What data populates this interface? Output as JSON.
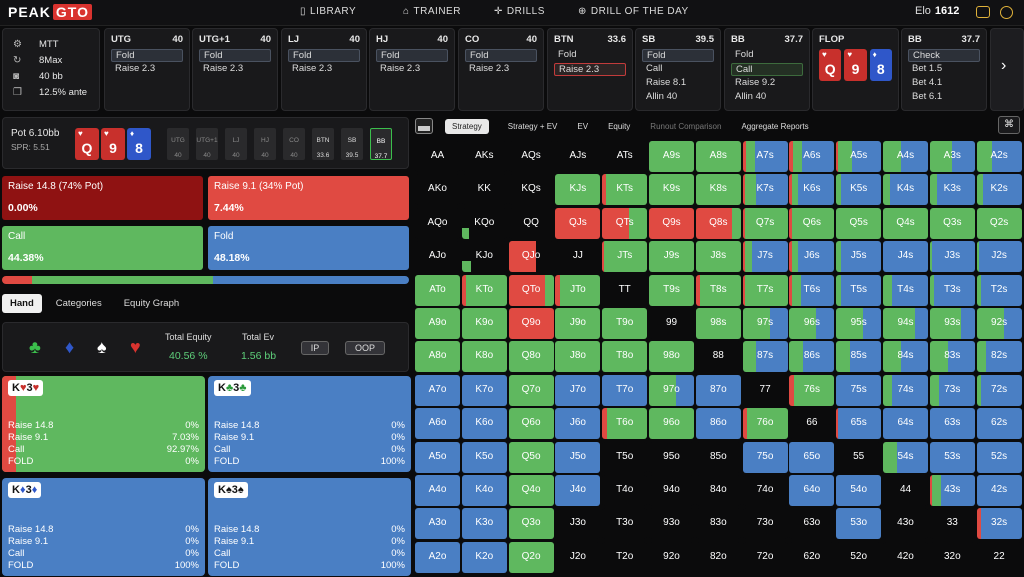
{
  "nav": {
    "logo_a": "PEAK",
    "logo_b": "GTO",
    "items": [
      {
        "label": "LIBRARY",
        "icon": "book-icon"
      },
      {
        "label": "TRAINER",
        "icon": "gamepad-icon"
      },
      {
        "label": "DRILLS",
        "icon": "target-icon"
      },
      {
        "label": "DRILL OF THE DAY",
        "icon": "plus-circle-icon"
      }
    ],
    "elo_label": "Elo",
    "elo_value": "1612"
  },
  "game_info": [
    {
      "icon": "gear-icon",
      "text": "MTT"
    },
    {
      "icon": "refresh-icon",
      "text": "8Max"
    },
    {
      "icon": "camera-icon",
      "text": "40 bb"
    },
    {
      "icon": "copy-icon",
      "text": "12.5% ante"
    }
  ],
  "positions": [
    {
      "name": "UTG",
      "stack": "40",
      "actions": [
        "Fold",
        "Raise 2.3"
      ],
      "selected": 0,
      "sel": "sel"
    },
    {
      "name": "UTG+1",
      "stack": "40",
      "actions": [
        "Fold",
        "Raise 2.3"
      ],
      "selected": 0,
      "sel": "sel"
    },
    {
      "name": "LJ",
      "stack": "40",
      "actions": [
        "Fold",
        "Raise 2.3"
      ],
      "selected": 0,
      "sel": "sel"
    },
    {
      "name": "HJ",
      "stack": "40",
      "actions": [
        "Fold",
        "Raise 2.3"
      ],
      "selected": 0,
      "sel": "sel"
    },
    {
      "name": "CO",
      "stack": "40",
      "actions": [
        "Fold",
        "Raise 2.3"
      ],
      "selected": 0,
      "sel": "sel"
    },
    {
      "name": "BTN",
      "stack": "33.6",
      "actions": [
        "Fold",
        "Raise 2.3"
      ],
      "selected": 1,
      "sel": "selr"
    },
    {
      "name": "SB",
      "stack": "39.5",
      "actions": [
        "Fold",
        "Call",
        "Raise 8.1",
        "Allin 40"
      ],
      "selected": 0,
      "sel": "sel"
    },
    {
      "name": "BB",
      "stack": "37.7",
      "actions": [
        "Fold",
        "Call",
        "Raise 9.2",
        "Allin 40"
      ],
      "selected": 1,
      "sel": "selg"
    },
    {
      "name": "BB",
      "stack": "37.7",
      "actions": [
        "Check",
        "Bet 1.5",
        "Bet 4.1",
        "Bet 6.1"
      ],
      "selected": 0,
      "sel": "sel"
    }
  ],
  "flop": {
    "label": "FLOP",
    "cards": [
      {
        "rank": "Q",
        "suit": "♥",
        "color": "red"
      },
      {
        "rank": "9",
        "suit": "♥",
        "color": "red"
      },
      {
        "rank": "8",
        "suit": "♦",
        "color": "blue"
      }
    ]
  },
  "pot": {
    "label": "Pot",
    "value": "6.10bb",
    "spr": "SPR: 5.51"
  },
  "seats": [
    {
      "name": "UTG",
      "stack": "40"
    },
    {
      "name": "UTG+1",
      "stack": "40"
    },
    {
      "name": "LJ",
      "stack": "40"
    },
    {
      "name": "HJ",
      "stack": "40"
    },
    {
      "name": "CO",
      "stack": "40"
    },
    {
      "name": "BTN",
      "stack": "33.6"
    },
    {
      "name": "SB",
      "stack": "39.5"
    },
    {
      "name": "BB",
      "stack": "37.7"
    }
  ],
  "actions": [
    {
      "label": "Raise 14.8 (74% Pot)",
      "value": "0.00%",
      "color": "#8f1212"
    },
    {
      "label": "Raise 9.1 (34% Pot)",
      "value": "7.44%",
      "color": "#e04a42"
    },
    {
      "label": "Call",
      "value": "44.38%",
      "color": "#5fb85f"
    },
    {
      "label": "Fold",
      "value": "48.18%",
      "color": "#4a7fc4"
    }
  ],
  "action_bar": [
    7.44,
    44.38,
    48.18
  ],
  "tabs": [
    "Hand",
    "Categories",
    "Equity Graph"
  ],
  "equity": {
    "total_equity_label": "Total Equity",
    "total_equity": "40.56 %",
    "total_ev_label": "Total Ev",
    "total_ev": "1.56 bb",
    "ip": "IP",
    "oop": "OOP"
  },
  "combos": [
    {
      "r1": "K",
      "s1": "♥",
      "r2": "3",
      "s2": "♥",
      "sc": "#c8302c",
      "bg": "#5fb85f",
      "red": 7.03,
      "lines": [
        [
          "Raise 14.8",
          "0%"
        ],
        [
          "Raise 9.1",
          "7.03%"
        ],
        [
          "Call",
          "92.97%"
        ],
        [
          "FOLD",
          "0%"
        ]
      ]
    },
    {
      "r1": "K",
      "s1": "♣",
      "r2": "3",
      "s2": "♣",
      "sc": "#2a9a3a",
      "bg": "#4a7fc4",
      "red": 0,
      "lines": [
        [
          "Raise 14.8",
          "0%"
        ],
        [
          "Raise 9.1",
          "0%"
        ],
        [
          "Call",
          "0%"
        ],
        [
          "FOLD",
          "100%"
        ]
      ]
    },
    {
      "r1": "K",
      "s1": "♦",
      "r2": "3",
      "s2": "♦",
      "sc": "#2f57c9",
      "bg": "#4a7fc4",
      "red": 0,
      "lines": [
        [
          "Raise 14.8",
          "0%"
        ],
        [
          "Raise 9.1",
          "0%"
        ],
        [
          "Call",
          "0%"
        ],
        [
          "FOLD",
          "100%"
        ]
      ]
    },
    {
      "r1": "K",
      "s1": "♠",
      "r2": "3",
      "s2": "♠",
      "sc": "#111",
      "bg": "#4a7fc4",
      "red": 0,
      "lines": [
        [
          "Raise 14.8",
          "0%"
        ],
        [
          "Raise 9.1",
          "0%"
        ],
        [
          "Call",
          "0%"
        ],
        [
          "FOLD",
          "100%"
        ]
      ]
    }
  ],
  "right_tabs": [
    "Strategy",
    "Strategy + EV",
    "EV",
    "Equity",
    "Runout Comparison",
    "Aggregate Reports"
  ],
  "colors": {
    "raise_big": "#8f1212",
    "raise": "#e04a42",
    "call": "#5fb85f",
    "fold": "#4a7fc4"
  },
  "grid": [
    [
      [
        "AA",
        0,
        0,
        0
      ],
      [
        "AKs",
        0,
        0,
        0
      ],
      [
        "AQs",
        0,
        0,
        0
      ],
      [
        "AJs",
        0,
        0,
        0
      ],
      [
        "ATs",
        0,
        0,
        0
      ],
      [
        "A9s",
        0,
        100,
        0
      ],
      [
        "A8s",
        0,
        100,
        0
      ],
      [
        "A7s",
        8,
        20,
        72
      ],
      [
        "A6s",
        8,
        20,
        72
      ],
      [
        "A5s",
        5,
        30,
        65
      ],
      [
        "A4s",
        0,
        40,
        60
      ],
      [
        "A3s",
        0,
        50,
        50
      ],
      [
        "A2s",
        0,
        35,
        65
      ]
    ],
    [
      [
        "AKo",
        0,
        0,
        0
      ],
      [
        "KK",
        0,
        0,
        0
      ],
      [
        "KQs",
        0,
        0,
        0
      ],
      [
        "KJs",
        0,
        100,
        0
      ],
      [
        "KTs",
        8,
        92,
        0
      ],
      [
        "K9s",
        0,
        100,
        0
      ],
      [
        "K8s",
        0,
        100,
        0
      ],
      [
        "K7s",
        5,
        25,
        70
      ],
      [
        "K6s",
        5,
        15,
        80
      ],
      [
        "K5s",
        0,
        10,
        90
      ],
      [
        "K4s",
        0,
        15,
        85
      ],
      [
        "K3s",
        0,
        15,
        85
      ],
      [
        "K2s",
        0,
        15,
        85
      ]
    ],
    [
      [
        "AQo",
        0,
        0,
        0
      ],
      [
        "KQo",
        0,
        15,
        0
      ],
      [
        "QQ",
        0,
        0,
        0
      ],
      [
        "QJs",
        100,
        0,
        0
      ],
      [
        "QTs",
        60,
        40,
        0
      ],
      [
        "Q9s",
        100,
        0,
        0
      ],
      [
        "Q8s",
        80,
        20,
        0
      ],
      [
        "Q7s",
        5,
        95,
        0
      ],
      [
        "Q6s",
        5,
        95,
        0
      ],
      [
        "Q5s",
        0,
        100,
        0
      ],
      [
        "Q4s",
        0,
        100,
        0
      ],
      [
        "Q3s",
        0,
        100,
        0
      ],
      [
        "Q2s",
        0,
        100,
        0
      ]
    ],
    [
      [
        "AJo",
        0,
        0,
        0
      ],
      [
        "KJo",
        0,
        20,
        0
      ],
      [
        "QJo",
        60,
        0,
        0
      ],
      [
        "JJ",
        0,
        0,
        0
      ],
      [
        "JTs",
        5,
        95,
        0
      ],
      [
        "J9s",
        0,
        100,
        0
      ],
      [
        "J8s",
        0,
        100,
        0
      ],
      [
        "J7s",
        5,
        15,
        80
      ],
      [
        "J6s",
        5,
        15,
        80
      ],
      [
        "J5s",
        0,
        10,
        90
      ],
      [
        "J4s",
        0,
        0,
        100
      ],
      [
        "J3s",
        0,
        5,
        95
      ],
      [
        "J2s",
        0,
        5,
        95
      ]
    ],
    [
      [
        "ATo",
        0,
        100,
        0
      ],
      [
        "KTo",
        10,
        90,
        0
      ],
      [
        "QTo",
        80,
        20,
        0
      ],
      [
        "JTo",
        10,
        90,
        0
      ],
      [
        "TT",
        0,
        0,
        0
      ],
      [
        "T9s",
        0,
        100,
        0
      ],
      [
        "T8s",
        10,
        90,
        0
      ],
      [
        "T7s",
        5,
        95,
        0
      ],
      [
        "T6s",
        5,
        20,
        75
      ],
      [
        "T5s",
        0,
        10,
        90
      ],
      [
        "T4s",
        0,
        20,
        80
      ],
      [
        "T3s",
        0,
        10,
        90
      ],
      [
        "T2s",
        0,
        10,
        90
      ]
    ],
    [
      [
        "A9o",
        0,
        100,
        0
      ],
      [
        "K9o",
        0,
        100,
        0
      ],
      [
        "Q9o",
        100,
        0,
        0
      ],
      [
        "J9o",
        0,
        100,
        0
      ],
      [
        "T9o",
        0,
        100,
        0
      ],
      [
        "99",
        0,
        0,
        0
      ],
      [
        "98s",
        0,
        100,
        0
      ],
      [
        "97s",
        0,
        60,
        40
      ],
      [
        "96s",
        0,
        60,
        40
      ],
      [
        "95s",
        0,
        60,
        40
      ],
      [
        "94s",
        0,
        70,
        30
      ],
      [
        "93s",
        0,
        70,
        30
      ],
      [
        "92s",
        0,
        60,
        40
      ]
    ],
    [
      [
        "A8o",
        0,
        100,
        0
      ],
      [
        "K8o",
        0,
        100,
        0
      ],
      [
        "Q8o",
        0,
        100,
        0
      ],
      [
        "J8o",
        0,
        100,
        0
      ],
      [
        "T8o",
        0,
        100,
        0
      ],
      [
        "98o",
        0,
        100,
        0
      ],
      [
        "88",
        0,
        0,
        0
      ],
      [
        "87s",
        0,
        30,
        70
      ],
      [
        "86s",
        0,
        30,
        70
      ],
      [
        "85s",
        0,
        30,
        70
      ],
      [
        "84s",
        0,
        40,
        60
      ],
      [
        "83s",
        0,
        40,
        60
      ],
      [
        "82s",
        0,
        20,
        80
      ]
    ],
    [
      [
        "A7o",
        0,
        0,
        100
      ],
      [
        "K7o",
        0,
        0,
        100
      ],
      [
        "Q7o",
        0,
        100,
        0
      ],
      [
        "J7o",
        0,
        0,
        100
      ],
      [
        "T7o",
        0,
        0,
        100
      ],
      [
        "97o",
        0,
        60,
        40
      ],
      [
        "87o",
        0,
        0,
        100
      ],
      [
        "77",
        0,
        0,
        0
      ],
      [
        "76s",
        10,
        90,
        0
      ],
      [
        "75s",
        0,
        0,
        100
      ],
      [
        "74s",
        0,
        20,
        80
      ],
      [
        "73s",
        0,
        20,
        80
      ],
      [
        "72s",
        0,
        10,
        90
      ]
    ],
    [
      [
        "A6o",
        0,
        0,
        100
      ],
      [
        "K6o",
        0,
        0,
        100
      ],
      [
        "Q6o",
        0,
        100,
        0
      ],
      [
        "J6o",
        0,
        0,
        100
      ],
      [
        "T6o",
        10,
        90,
        0
      ],
      [
        "96o",
        0,
        100,
        0
      ],
      [
        "86o",
        0,
        0,
        100
      ],
      [
        "76o",
        10,
        90,
        0
      ],
      [
        "66",
        0,
        0,
        0
      ],
      [
        "65s",
        5,
        0,
        95
      ],
      [
        "64s",
        0,
        0,
        100
      ],
      [
        "63s",
        0,
        0,
        100
      ],
      [
        "62s",
        0,
        0,
        100
      ]
    ],
    [
      [
        "A5o",
        0,
        0,
        100
      ],
      [
        "K5o",
        0,
        0,
        100
      ],
      [
        "Q5o",
        0,
        100,
        0
      ],
      [
        "J5o",
        0,
        0,
        100
      ],
      [
        "T5o",
        0,
        0,
        0
      ],
      [
        "95o",
        0,
        0,
        0
      ],
      [
        "85o",
        0,
        0,
        0
      ],
      [
        "75o",
        0,
        0,
        100
      ],
      [
        "65o",
        0,
        0,
        100
      ],
      [
        "55",
        0,
        0,
        0
      ],
      [
        "54s",
        0,
        30,
        70
      ],
      [
        "53s",
        0,
        0,
        100
      ],
      [
        "52s",
        0,
        0,
        100
      ]
    ],
    [
      [
        "A4o",
        0,
        0,
        100
      ],
      [
        "K4o",
        0,
        0,
        100
      ],
      [
        "Q4o",
        0,
        100,
        0
      ],
      [
        "J4o",
        0,
        0,
        100
      ],
      [
        "T4o",
        0,
        0,
        0
      ],
      [
        "94o",
        0,
        0,
        0
      ],
      [
        "84o",
        0,
        0,
        0
      ],
      [
        "74o",
        0,
        0,
        0
      ],
      [
        "64o",
        0,
        0,
        100
      ],
      [
        "54o",
        0,
        0,
        100
      ],
      [
        "44",
        0,
        0,
        0
      ],
      [
        "43s",
        5,
        20,
        75
      ],
      [
        "42s",
        0,
        0,
        100
      ]
    ],
    [
      [
        "A3o",
        0,
        0,
        100
      ],
      [
        "K3o",
        0,
        0,
        100
      ],
      [
        "Q3o",
        0,
        100,
        0
      ],
      [
        "J3o",
        0,
        0,
        0
      ],
      [
        "T3o",
        0,
        0,
        0
      ],
      [
        "93o",
        0,
        0,
        0
      ],
      [
        "83o",
        0,
        0,
        0
      ],
      [
        "73o",
        0,
        0,
        0
      ],
      [
        "63o",
        0,
        0,
        0
      ],
      [
        "53o",
        0,
        0,
        100
      ],
      [
        "43o",
        0,
        0,
        0
      ],
      [
        "33",
        0,
        0,
        0
      ],
      [
        "32s",
        10,
        0,
        90
      ]
    ],
    [
      [
        "A2o",
        0,
        0,
        100
      ],
      [
        "K2o",
        0,
        0,
        100
      ],
      [
        "Q2o",
        0,
        100,
        0
      ],
      [
        "J2o",
        0,
        0,
        0
      ],
      [
        "T2o",
        0,
        0,
        0
      ],
      [
        "92o",
        0,
        0,
        0
      ],
      [
        "82o",
        0,
        0,
        0
      ],
      [
        "72o",
        0,
        0,
        0
      ],
      [
        "62o",
        0,
        0,
        0
      ],
      [
        "52o",
        0,
        0,
        0
      ],
      [
        "42o",
        0,
        0,
        0
      ],
      [
        "32o",
        0,
        0,
        0
      ],
      [
        "22",
        0,
        0,
        0
      ]
    ]
  ]
}
